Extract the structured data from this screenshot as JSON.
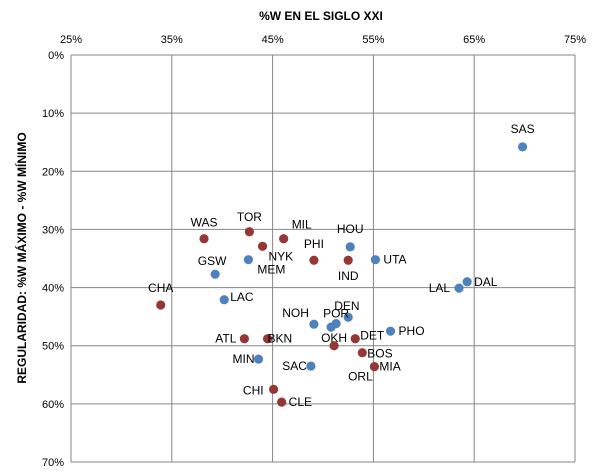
{
  "chart_data": {
    "type": "scatter",
    "title": "",
    "xlabel": "%W EN EL SIGLO XXI",
    "ylabel": "REGULARIDAD: %W MÁXIMO - %W MÍNIMO",
    "xlim": [
      0.25,
      0.75
    ],
    "ylim": [
      0.0,
      0.7
    ],
    "x_axis_position": "top",
    "y_axis_reversed": true,
    "x_ticks": [
      "25%",
      "35%",
      "45%",
      "55%",
      "65%",
      "75%"
    ],
    "y_ticks": [
      "0%",
      "10%",
      "20%",
      "30%",
      "40%",
      "50%",
      "60%",
      "70%"
    ],
    "grid": true,
    "legend": "none",
    "colors": {
      "blue": "#4f81bd",
      "red": "#953735"
    },
    "points": [
      {
        "team": "SAS",
        "x": 0.698,
        "y": 0.158,
        "color": "blue"
      },
      {
        "team": "DAL",
        "x": 0.643,
        "y": 0.39,
        "color": "blue"
      },
      {
        "team": "LAL",
        "x": 0.635,
        "y": 0.401,
        "color": "blue"
      },
      {
        "team": "HOU",
        "x": 0.527,
        "y": 0.33,
        "color": "blue"
      },
      {
        "team": "UTA",
        "x": 0.552,
        "y": 0.352,
        "color": "blue"
      },
      {
        "team": "IND",
        "x": 0.525,
        "y": 0.353,
        "color": "red"
      },
      {
        "team": "PHI",
        "x": 0.491,
        "y": 0.353,
        "color": "red"
      },
      {
        "team": "MIL",
        "x": 0.461,
        "y": 0.316,
        "color": "red"
      },
      {
        "team": "TOR",
        "x": 0.427,
        "y": 0.304,
        "color": "red"
      },
      {
        "team": "WAS",
        "x": 0.382,
        "y": 0.316,
        "color": "red"
      },
      {
        "team": "NYK",
        "x": 0.44,
        "y": 0.329,
        "color": "red"
      },
      {
        "team": "MEM",
        "x": 0.426,
        "y": 0.352,
        "color": "blue"
      },
      {
        "team": "GSW",
        "x": 0.393,
        "y": 0.377,
        "color": "blue"
      },
      {
        "team": "CHA",
        "x": 0.339,
        "y": 0.43,
        "color": "red"
      },
      {
        "team": "LAC",
        "x": 0.402,
        "y": 0.421,
        "color": "blue"
      },
      {
        "team": "DEN",
        "x": 0.525,
        "y": 0.451,
        "color": "blue"
      },
      {
        "team": "POR",
        "x": 0.513,
        "y": 0.462,
        "color": "blue"
      },
      {
        "team": "NOH",
        "x": 0.491,
        "y": 0.463,
        "color": "blue"
      },
      {
        "team": "OKH",
        "x": 0.508,
        "y": 0.468,
        "color": "blue"
      },
      {
        "team": "PHO",
        "x": 0.567,
        "y": 0.475,
        "color": "blue"
      },
      {
        "team": "DET",
        "x": 0.532,
        "y": 0.488,
        "color": "red"
      },
      {
        "team": "ATL",
        "x": 0.422,
        "y": 0.488,
        "color": "red"
      },
      {
        "team": "BKN",
        "x": 0.445,
        "y": 0.488,
        "color": "red"
      },
      {
        "team": "BOS",
        "x": 0.539,
        "y": 0.512,
        "color": "red"
      },
      {
        "team": "MIN",
        "x": 0.436,
        "y": 0.523,
        "color": "blue"
      },
      {
        "team": "SAC",
        "x": 0.488,
        "y": 0.535,
        "color": "blue"
      },
      {
        "team": "MIA",
        "x": 0.551,
        "y": 0.536,
        "color": "red"
      },
      {
        "team": "ORL",
        "x": 0.511,
        "y": 0.5,
        "color": "red"
      },
      {
        "team": "CHI",
        "x": 0.451,
        "y": 0.575,
        "color": "red"
      },
      {
        "team": "CLE",
        "x": 0.459,
        "y": 0.597,
        "color": "red"
      }
    ]
  }
}
